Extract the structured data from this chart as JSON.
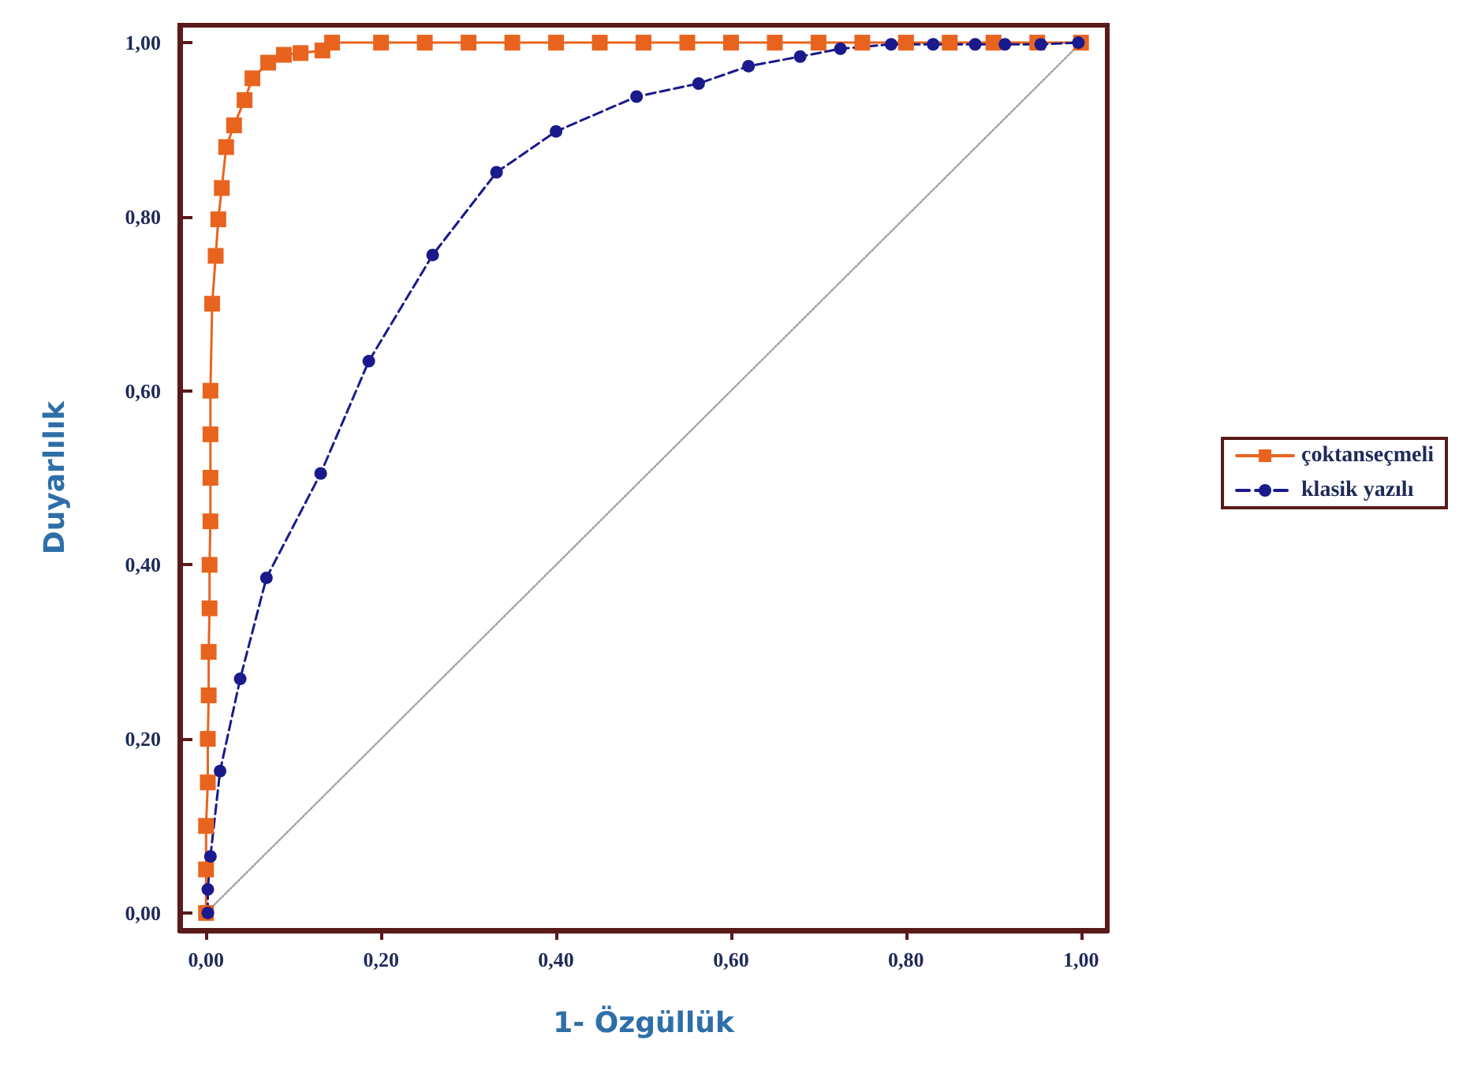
{
  "chart_data": {
    "type": "line",
    "xlabel": "1- Özgüllük",
    "ylabel": "Duyarlılık",
    "xlim": [
      -0.03,
      1.03
    ],
    "ylim": [
      -0.02,
      1.02
    ],
    "xticks": [
      {
        "value": 0,
        "label": "0,00"
      },
      {
        "value": 0.2,
        "label": "0,20"
      },
      {
        "value": 0.4,
        "label": "0,40"
      },
      {
        "value": 0.6,
        "label": "0,60"
      },
      {
        "value": 0.8,
        "label": "0,80"
      },
      {
        "value": 1,
        "label": "1,00"
      }
    ],
    "yticks": [
      {
        "value": 0,
        "label": "0,00"
      },
      {
        "value": 0.2,
        "label": "0,20"
      },
      {
        "value": 0.4,
        "label": "0,40"
      },
      {
        "value": 0.6,
        "label": "0,60"
      },
      {
        "value": 0.8,
        "label": "0,80"
      },
      {
        "value": 1,
        "label": "1,00"
      }
    ],
    "grid": false,
    "legend": "right",
    "series": [
      {
        "name": "çoktanseçmeli",
        "color": "#e8641e",
        "marker": "square",
        "line_style": "solid",
        "x": [
          0,
          0,
          0,
          0.002,
          0.002,
          0.003,
          0.003,
          0.004,
          0.004,
          0.005,
          0.005,
          0.005,
          0.005,
          0.007,
          0.011,
          0.014,
          0.018,
          0.023,
          0.032,
          0.044,
          0.053,
          0.071,
          0.089,
          0.108,
          0.133,
          0.144,
          0.2,
          0.25,
          0.3,
          0.35,
          0.4,
          0.45,
          0.5,
          0.55,
          0.6,
          0.65,
          0.7,
          0.75,
          0.8,
          0.85,
          0.9,
          0.95,
          1
        ],
        "values": [
          0,
          0.05,
          0.1,
          0.15,
          0.2,
          0.25,
          0.3,
          0.35,
          0.4,
          0.45,
          0.5,
          0.55,
          0.6,
          0.7,
          0.755,
          0.797,
          0.833,
          0.88,
          0.905,
          0.934,
          0.959,
          0.977,
          0.986,
          0.988,
          0.991,
          1,
          1,
          1,
          1,
          1,
          1,
          1,
          1,
          1,
          1,
          1,
          1,
          1,
          1,
          1,
          1,
          1,
          1
        ]
      },
      {
        "name": "klasik yazılı",
        "color": "#1a1a8c",
        "marker": "circle",
        "line_style": "dashed",
        "x": [
          0.002,
          0.002,
          0.005,
          0.016,
          0.039,
          0.069,
          0.131,
          0.186,
          0.259,
          0.332,
          0.4,
          0.492,
          0.563,
          0.62,
          0.679,
          0.725,
          0.783,
          0.831,
          0.879,
          0.913,
          0.954,
          0.997
        ],
        "values": [
          0,
          0.027,
          0.065,
          0.163,
          0.269,
          0.385,
          0.505,
          0.634,
          0.756,
          0.851,
          0.898,
          0.938,
          0.953,
          0.973,
          0.984,
          0.993,
          0.998,
          0.998,
          0.998,
          0.998,
          0.998,
          1
        ]
      },
      {
        "color": "#a0a0a0",
        "marker": "none",
        "line_style": "dotted",
        "x": [
          0,
          1
        ],
        "values": [
          0,
          1
        ]
      }
    ]
  }
}
